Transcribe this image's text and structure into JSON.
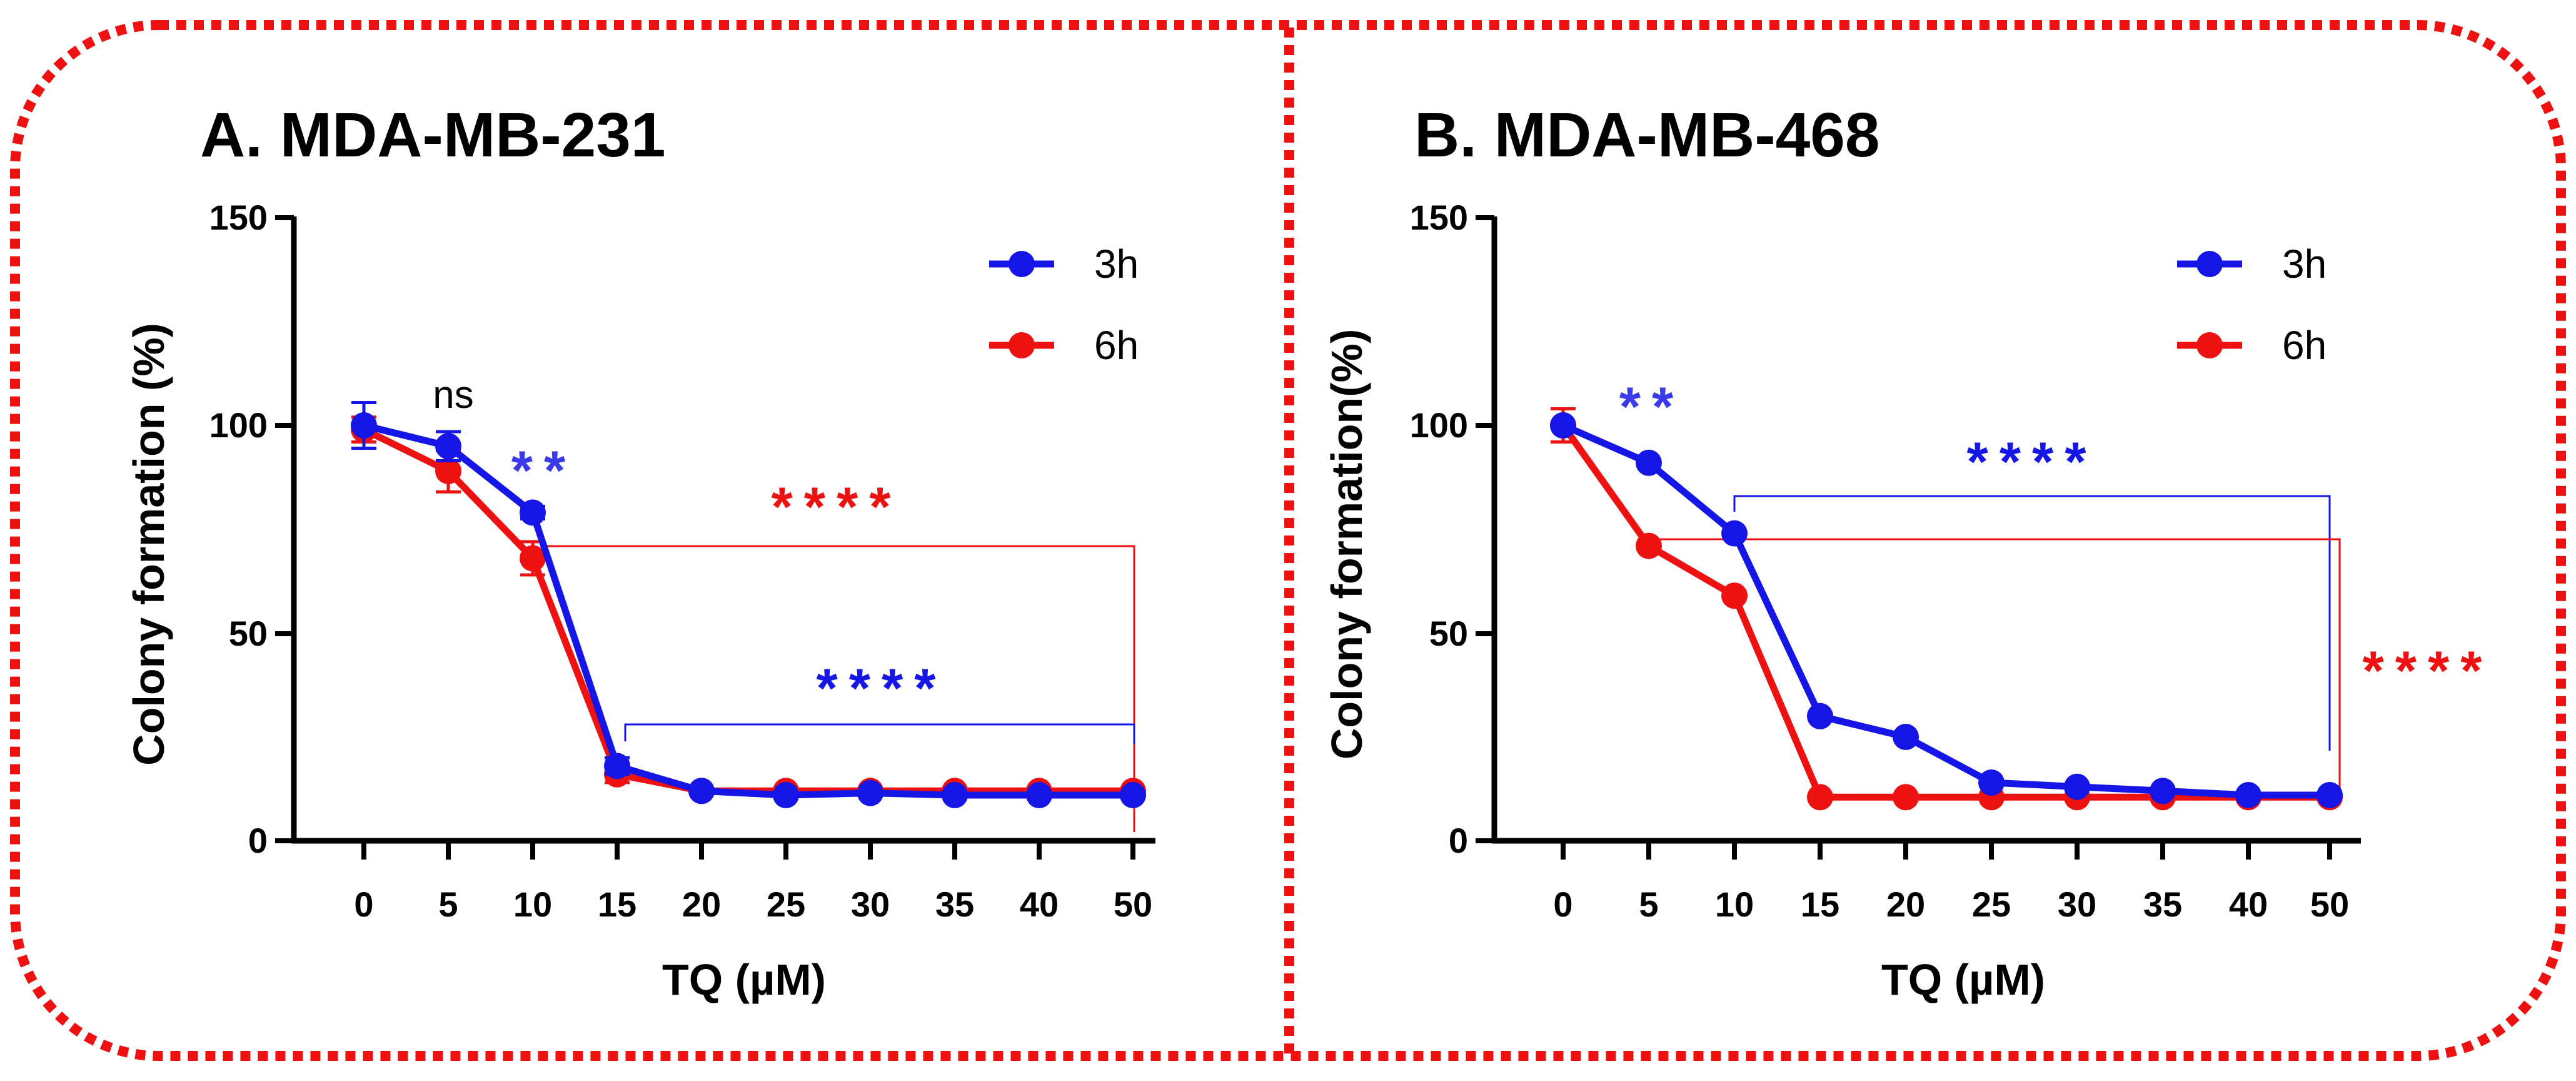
{
  "colors": {
    "blue": "#1515e6",
    "red": "#ee1111",
    "border": "#ee1111"
  },
  "chart_data": [
    {
      "type": "line",
      "title": "A. MDA-MB-231",
      "xlabel": "TQ (µM)",
      "ylabel": "Colony formation (%)",
      "categories": [
        "0",
        "5",
        "10",
        "15",
        "20",
        "25",
        "30",
        "35",
        "40",
        "50"
      ],
      "yticks": [
        "0",
        "50",
        "100",
        "150"
      ],
      "ylim": [
        0,
        150
      ],
      "legend_position": "top-right",
      "series": [
        {
          "name": "3h",
          "color": "#1515e6",
          "values": [
            100,
            95,
            79,
            18,
            12,
            11,
            11.5,
            11,
            11,
            11
          ],
          "errors": [
            5.5,
            3.5,
            1.5,
            2,
            1,
            1,
            1,
            1,
            1,
            1
          ]
        },
        {
          "name": "6h",
          "color": "#ee1111",
          "values": [
            99,
            89,
            68,
            16,
            12,
            12,
            12,
            12,
            12,
            12
          ],
          "errors": [
            3,
            5,
            4,
            2,
            1,
            1,
            1,
            1,
            1,
            1
          ]
        }
      ],
      "annotations": [
        {
          "text": "ns",
          "color": "#000000",
          "style": "ns"
        },
        {
          "text": "**",
          "color": "#3a3ae8",
          "style": "star"
        },
        {
          "text": "****",
          "color": "#ee1111",
          "style": "star"
        },
        {
          "text": "****",
          "color": "#1515e6",
          "style": "star"
        }
      ]
    },
    {
      "type": "line",
      "title": "B. MDA-MB-468",
      "xlabel": "TQ (µM)",
      "ylabel": "Colony formation(%)",
      "categories": [
        "0",
        "5",
        "10",
        "15",
        "20",
        "25",
        "30",
        "35",
        "40",
        "50"
      ],
      "yticks": [
        "0",
        "50",
        "100",
        "150"
      ],
      "ylim": [
        0,
        150
      ],
      "legend_position": "top-right",
      "series": [
        {
          "name": "3h",
          "color": "#1515e6",
          "values": [
            100,
            91,
            74,
            30,
            25,
            14,
            13,
            12,
            11,
            11
          ],
          "errors": [
            1,
            1,
            1,
            1,
            1,
            1,
            1,
            1,
            1,
            1
          ]
        },
        {
          "name": "6h",
          "color": "#ee1111",
          "values": [
            100,
            71,
            59,
            10.5,
            10.5,
            10.5,
            10.5,
            10.5,
            10.5,
            10.5
          ],
          "errors": [
            4,
            1,
            1,
            1,
            1,
            1,
            1,
            1,
            1,
            1
          ]
        }
      ],
      "annotations": [
        {
          "text": "**",
          "color": "#3a3ae8",
          "style": "star"
        },
        {
          "text": "****",
          "color": "#1515e6",
          "style": "star"
        },
        {
          "text": "****",
          "color": "#ee1111",
          "style": "star"
        }
      ]
    }
  ]
}
